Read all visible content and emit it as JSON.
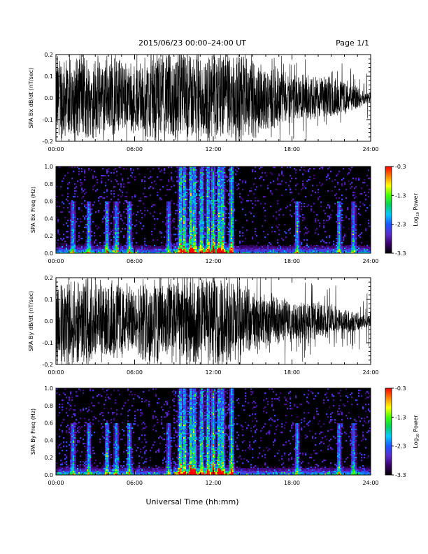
{
  "header": {
    "title": "2015/06/23  00:00–24:00 UT",
    "page": "Page 1/1"
  },
  "footer": {
    "xlabel": "Universal Time (hh:mm)"
  },
  "colorbar": {
    "label_base": "Log",
    "label_sub": "10",
    "label_tail": " Power",
    "ticks": [
      "-0.3",
      "-1.3",
      "-2.3",
      "-3.3"
    ],
    "stops": [
      "#000000",
      "#3a006a",
      "#5a2bd0",
      "#1a55ff",
      "#00c8ff",
      "#00d060",
      "#40ff00",
      "#ffff00",
      "#ff8000",
      "#ff0000"
    ]
  },
  "chart_data": [
    {
      "type": "line",
      "ylabel": "SPA Bx dB/dt (nT/sec)",
      "x_ticks": [
        "00:00",
        "06:00",
        "12:00",
        "18:00",
        "24:00"
      ],
      "y_ticks": [
        "0.2",
        "0.1",
        "0.0",
        "-0.1",
        "-0.2"
      ],
      "xlim": [
        0,
        24
      ],
      "ylim": [
        -0.2,
        0.2
      ],
      "envelope": {
        "hours": [
          0,
          1,
          2,
          3,
          4,
          5,
          6,
          7,
          8,
          9,
          10,
          11,
          12,
          13,
          14,
          15,
          16,
          17,
          18,
          19,
          20,
          21,
          22,
          23,
          23.5,
          24
        ],
        "amplitude": [
          0.22,
          0.22,
          0.22,
          0.2,
          0.19,
          0.18,
          0.17,
          0.22,
          0.22,
          0.22,
          0.22,
          0.22,
          0.22,
          0.22,
          0.22,
          0.2,
          0.17,
          0.14,
          0.12,
          0.11,
          0.11,
          0.1,
          0.08,
          0.06,
          0.03,
          0.02
        ]
      }
    },
    {
      "type": "heatmap",
      "ylabel": "SPA Bx Freq (Hz)",
      "x_ticks": [
        "00:00",
        "06:00",
        "12:00",
        "18:00",
        "24:00"
      ],
      "y_ticks": [
        "1.0",
        "0.8",
        "0.6",
        "0.4",
        "0.2",
        "0.0"
      ],
      "xlim": [
        0,
        24
      ],
      "ylim": [
        0,
        1.0
      ],
      "colorbar_range": [
        -3.3,
        -0.3
      ],
      "bursts_hours": [
        1.3,
        2.5,
        3.9,
        4.6,
        5.6,
        8.6,
        9.5,
        9.8,
        10.3,
        10.55,
        11.1,
        11.6,
        12.0,
        12.45,
        12.7,
        13.4,
        18.4,
        21.6,
        22.7
      ],
      "max_power_hours": [
        10.3,
        12.45
      ]
    },
    {
      "type": "line",
      "ylabel": "SPA By dB/dt (nT/sec)",
      "x_ticks": [
        "00:00",
        "06:00",
        "12:00",
        "18:00",
        "24:00"
      ],
      "y_ticks": [
        "0.2",
        "0.1",
        "0.0",
        "-0.1",
        "-0.2"
      ],
      "xlim": [
        0,
        24
      ],
      "ylim": [
        -0.2,
        0.2
      ],
      "envelope": {
        "hours": [
          0,
          1,
          2,
          3,
          4,
          5,
          6,
          7,
          8,
          9,
          10,
          11,
          12,
          13,
          14,
          15,
          16,
          17,
          18,
          19,
          20,
          21,
          22,
          23,
          23.5,
          24
        ],
        "amplitude": [
          0.22,
          0.22,
          0.22,
          0.22,
          0.2,
          0.18,
          0.15,
          0.22,
          0.22,
          0.22,
          0.22,
          0.22,
          0.22,
          0.22,
          0.18,
          0.15,
          0.13,
          0.12,
          0.11,
          0.1,
          0.09,
          0.08,
          0.06,
          0.05,
          0.035,
          0.03
        ]
      }
    },
    {
      "type": "heatmap",
      "ylabel": "SPA By Freq (Hz)",
      "x_ticks": [
        "00:00",
        "06:00",
        "12:00",
        "18:00",
        "24:00"
      ],
      "y_ticks": [
        "1.0",
        "0.8",
        "0.6",
        "0.4",
        "0.2",
        "0.0"
      ],
      "xlim": [
        0,
        24
      ],
      "ylim": [
        0,
        1.0
      ],
      "colorbar_range": [
        -3.3,
        -0.3
      ],
      "bursts_hours": [
        1.3,
        2.5,
        3.9,
        4.6,
        5.6,
        8.6,
        9.5,
        9.8,
        10.3,
        10.55,
        11.1,
        11.6,
        12.0,
        12.45,
        12.7,
        13.4,
        18.4,
        21.6,
        22.7
      ],
      "max_power_hours": [
        10.3,
        12.45
      ]
    }
  ]
}
